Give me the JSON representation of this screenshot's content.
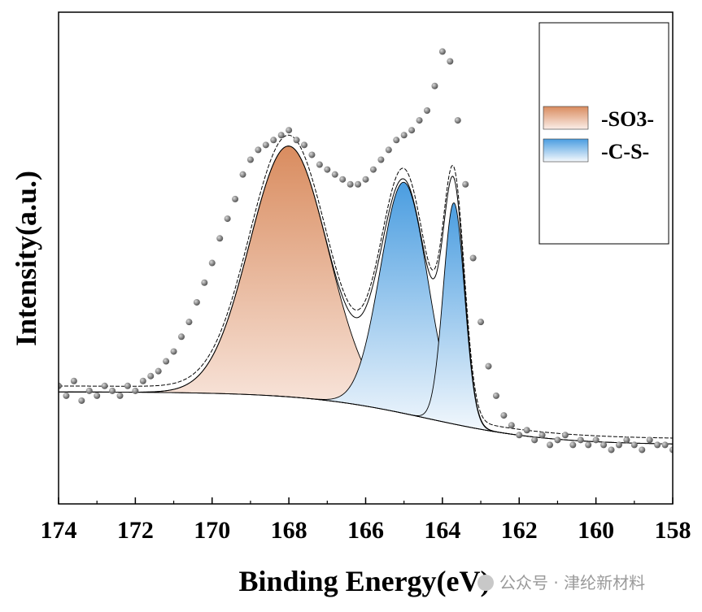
{
  "chart_data": {
    "type": "scatter",
    "xlabel": "Binding Energy(eV)",
    "ylabel": "Intensity(a.u.)",
    "xlim": [
      174,
      158
    ],
    "x_reversed": true,
    "y_unit": "arbitrary",
    "ylim": [
      0,
      100
    ],
    "grid": false,
    "legend_position": "top-right",
    "x_ticks": [
      174,
      172,
      170,
      168,
      166,
      164,
      162,
      160,
      158
    ],
    "series": [
      {
        "name": "-SO3-",
        "type": "peak",
        "center": 168.0,
        "height": 51,
        "fwhm": 2.4,
        "color_top": "#d98c5f",
        "color_bottom": "#fbeee8"
      },
      {
        "name": "-C-S-",
        "type": "peak",
        "center": 165.0,
        "height": 47,
        "fwhm": 1.45,
        "color_top": "#4a9de0",
        "color_bottom": "#eef5fc"
      },
      {
        "name": "-C-S-",
        "type": "peak",
        "center": 163.7,
        "height": 45,
        "fwhm": 0.65,
        "color_top": "#4a9de0",
        "color_bottom": "#eef5fc"
      }
    ],
    "background": {
      "type": "shirley",
      "left_level": 22.8,
      "right_level": 12.0
    },
    "raw_data": {
      "x": [
        174,
        173.8,
        173.6,
        173.4,
        173.2,
        173,
        172.8,
        172.6,
        172.4,
        172.2,
        172,
        171.8,
        171.6,
        171.4,
        171.2,
        171,
        170.8,
        170.6,
        170.4,
        170.2,
        170,
        169.8,
        169.6,
        169.4,
        169.2,
        169,
        168.8,
        168.6,
        168.4,
        168.2,
        168,
        167.8,
        167.6,
        167.4,
        167.2,
        167,
        166.8,
        166.6,
        166.4,
        166.2,
        166,
        165.8,
        165.6,
        165.4,
        165.2,
        165,
        164.8,
        164.6,
        164.4,
        164.2,
        164,
        163.8,
        163.6,
        163.4,
        163.2,
        163,
        162.8,
        162.6,
        162.4,
        162.2,
        162,
        161.8,
        161.6,
        161.4,
        161.2,
        161,
        160.8,
        160.6,
        160.4,
        160.2,
        160,
        159.8,
        159.6,
        159.4,
        159.2,
        159,
        158.8,
        158.6,
        158.4,
        158.2,
        158
      ],
      "y": [
        24,
        22,
        25,
        21,
        23,
        22,
        24,
        23,
        22,
        24,
        23,
        25,
        26,
        27,
        29,
        31,
        34,
        37,
        41,
        45,
        49,
        54,
        58,
        62,
        67,
        70,
        72,
        73,
        74,
        75,
        76,
        74,
        73,
        71,
        69,
        68,
        67,
        66,
        65,
        65,
        66,
        68,
        70,
        72,
        74,
        75,
        76,
        78,
        80,
        85,
        92,
        90,
        78,
        65,
        50,
        37,
        28,
        22,
        18,
        16,
        14,
        15,
        13,
        14,
        12,
        13,
        14,
        12,
        13,
        12,
        13,
        12,
        11,
        12,
        13,
        12,
        11,
        13,
        12,
        12,
        11
      ],
      "color": "#7a7a7a"
    }
  },
  "legend": {
    "items": [
      {
        "label": "-SO3-",
        "color_top": "#d98c5f",
        "color_bottom": "#fbeee8"
      },
      {
        "label": "-C-S-",
        "color_top": "#4a9de0",
        "color_bottom": "#eef5fc"
      }
    ]
  },
  "watermark": {
    "text": "公众号 · 津纶新材料"
  }
}
